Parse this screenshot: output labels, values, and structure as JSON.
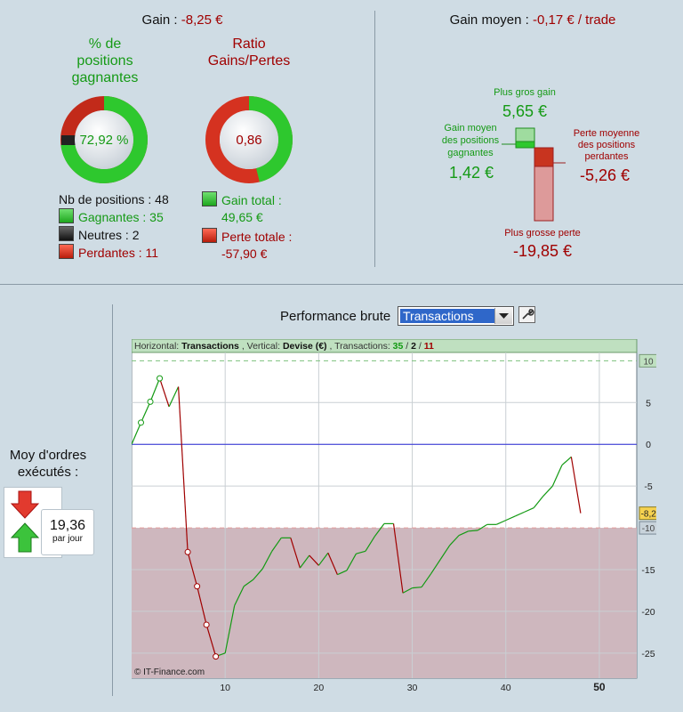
{
  "summary": {
    "gain_label": "Gain :",
    "gain_value": "-8,25 €",
    "pct_title_l1": "% de",
    "pct_title_l2": "positions",
    "pct_title_l3": "gagnantes",
    "pct_value": "72,92 %",
    "pct_fraction": 0.7292,
    "ratio_title_l1": "Ratio",
    "ratio_title_l2": "Gains/Pertes",
    "ratio_value": "0,86",
    "ratio_fraction": 0.46,
    "nb_positions": "Nb de positions : 48",
    "gagnantes": "Gagnantes : 35",
    "neutres": "Neutres : 2",
    "perdantes": "Perdantes : 11",
    "gain_total_label": "Gain total :",
    "gain_total_value": "49,65 €",
    "perte_totale_label": "Perte totale :",
    "perte_totale_value": "-57,90 €"
  },
  "gain_moyen": {
    "title_label": "Gain moyen :",
    "title_value": "-0,17 € / trade",
    "plus_gros_gain_label": "Plus gros gain",
    "plus_gros_gain_value": "5,65 €",
    "gain_moyen_l1": "Gain moyen",
    "gain_moyen_l2": "des positions",
    "gain_moyen_l3": "gagnantes",
    "gain_moyen_value": "1,42 €",
    "perte_moyenne_l1": "Perte moyenne",
    "perte_moyenne_l2": "des positions",
    "perte_moyenne_l3": "perdantes",
    "perte_moyenne_value": "-5,26 €",
    "plus_grosse_perte_label": "Plus grosse perte",
    "plus_grosse_perte_value": "-19,85 €"
  },
  "ordres": {
    "label_l1": "Moy d'ordres",
    "label_l2": "exécutés :",
    "value": "19,36",
    "unit": "par jour"
  },
  "performance": {
    "title": "Performance brute",
    "select_value": "Transactions",
    "header_h_label": "Horizontal:",
    "header_h_value": "Transactions",
    "header_v_label": ", Vertical:",
    "header_v_value": "Devise (€)",
    "header_t_label": ", Transactions:",
    "header_wins": "35",
    "header_sep1": "/",
    "header_neutral": "2",
    "header_sep2": "/",
    "header_losses": "11",
    "copyright": "© IT-Finance.com",
    "colors": {
      "win": "#139a13",
      "loss": "#a00000",
      "zero": "#2b2bd8",
      "loss_zone": "#ceb7be",
      "win_zone": "#bfe0c0"
    }
  },
  "chart_data": {
    "type": "line",
    "x": [
      0,
      1,
      2,
      3,
      4,
      5,
      6,
      7,
      8,
      9,
      10,
      11,
      12,
      13,
      14,
      15,
      16,
      17,
      18,
      19,
      20,
      21,
      22,
      23,
      24,
      25,
      26,
      27,
      28,
      29,
      30,
      31,
      32,
      33,
      34,
      35,
      36,
      37,
      38,
      39,
      40,
      41,
      42,
      43,
      44,
      45,
      46,
      47,
      48
    ],
    "y": [
      0,
      2.6,
      5.1,
      7.9,
      4.5,
      6.9,
      -12.9,
      -17,
      -21.6,
      -25.4,
      -25,
      -19.3,
      -17,
      -16.2,
      -14.9,
      -12.8,
      -11.2,
      -11.2,
      -14.8,
      -13.3,
      -14.5,
      -13,
      -15.6,
      -15.1,
      -13.1,
      -12.8,
      -11,
      -9.5,
      -9.5,
      -17.8,
      -17.2,
      -17.1,
      -15.5,
      -13.8,
      -12.1,
      -10.9,
      -10.4,
      -10.3,
      -9.6,
      -9.6,
      -9.1,
      -8.6,
      -8.1,
      -7.6,
      -6.2,
      -5,
      -2.5,
      -1.5,
      -8.25
    ],
    "win_markers": [
      1,
      2,
      3
    ],
    "loss_markers": [
      6,
      7,
      8,
      9
    ],
    "xticks": [
      "10",
      "20",
      "30",
      "40",
      "50"
    ],
    "xtick_values": [
      10,
      20,
      30,
      40,
      50
    ],
    "yticks": [
      "5",
      "0",
      "-5",
      "-15",
      "-20",
      "-25"
    ],
    "ytick_values": [
      5,
      0,
      -5,
      -15,
      -20,
      -25
    ],
    "upper_band_label": "10",
    "upper_band_value": 10,
    "lower_band_label": "-10",
    "lower_band_value": -10,
    "last_value_label": "-8,25",
    "last_value": -8.25,
    "xlim": [
      0,
      54
    ],
    "ylim": [
      -28,
      11
    ]
  }
}
